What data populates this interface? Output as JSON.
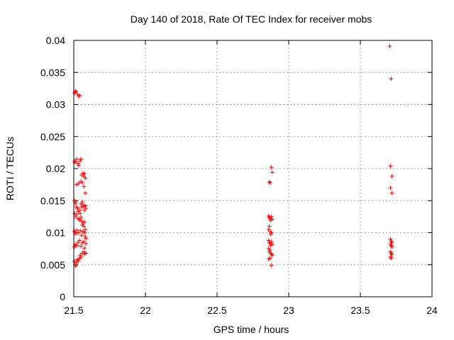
{
  "chart_data": {
    "type": "scatter",
    "title": "Day 140 of 2018, Rate Of TEC Index for receiver mobs",
    "xlabel": "GPS time / hours",
    "ylabel": "ROTI / TECUs",
    "xlim": [
      21.5,
      24
    ],
    "ylim": [
      0,
      0.04
    ],
    "xticks": [
      21.5,
      22,
      22.5,
      23,
      23.5,
      24
    ],
    "xtick_labels": [
      "21.5",
      "22",
      "22.5",
      "23",
      "23.5",
      "24"
    ],
    "yticks": [
      0,
      0.005,
      0.01,
      0.015,
      0.02,
      0.025,
      0.03,
      0.035,
      0.04
    ],
    "ytick_labels": [
      "0",
      "0.005",
      "0.01",
      "0.015",
      "0.02",
      "0.025",
      "0.03",
      "0.035",
      "0.04"
    ],
    "grid": true,
    "marker": "+",
    "color": "#ff0000",
    "series": [
      {
        "name": "mobs",
        "points": [
          [
            21.505,
            0.0318
          ],
          [
            21.51,
            0.0321
          ],
          [
            21.515,
            0.032
          ],
          [
            21.525,
            0.0316
          ],
          [
            21.535,
            0.0313
          ],
          [
            21.54,
            0.0314
          ],
          [
            21.505,
            0.0211
          ],
          [
            21.51,
            0.021
          ],
          [
            21.52,
            0.0215
          ],
          [
            21.53,
            0.0208
          ],
          [
            21.535,
            0.0205
          ],
          [
            21.545,
            0.0212
          ],
          [
            21.55,
            0.0215
          ],
          [
            21.555,
            0.019
          ],
          [
            21.565,
            0.0193
          ],
          [
            21.57,
            0.0188
          ],
          [
            21.58,
            0.0185
          ],
          [
            21.575,
            0.0192
          ],
          [
            21.52,
            0.0175
          ],
          [
            21.535,
            0.0177
          ],
          [
            21.55,
            0.018
          ],
          [
            21.56,
            0.0178
          ],
          [
            21.57,
            0.0172
          ],
          [
            21.58,
            0.0162
          ],
          [
            21.505,
            0.015
          ],
          [
            21.51,
            0.0145
          ],
          [
            21.515,
            0.0148
          ],
          [
            21.52,
            0.014
          ],
          [
            21.525,
            0.0138
          ],
          [
            21.53,
            0.0133
          ],
          [
            21.54,
            0.0135
          ],
          [
            21.545,
            0.013
          ],
          [
            21.55,
            0.0145
          ],
          [
            21.555,
            0.014
          ],
          [
            21.56,
            0.0148
          ],
          [
            21.565,
            0.0143
          ],
          [
            21.57,
            0.0141
          ],
          [
            21.575,
            0.0135
          ],
          [
            21.58,
            0.0142
          ],
          [
            21.585,
            0.0138
          ],
          [
            21.505,
            0.013
          ],
          [
            21.51,
            0.0125
          ],
          [
            21.52,
            0.0128
          ],
          [
            21.53,
            0.0122
          ],
          [
            21.54,
            0.012
          ],
          [
            21.55,
            0.0124
          ],
          [
            21.555,
            0.0118
          ],
          [
            21.56,
            0.0112
          ],
          [
            21.565,
            0.0115
          ],
          [
            21.57,
            0.011
          ],
          [
            21.575,
            0.0117
          ],
          [
            21.58,
            0.0105
          ],
          [
            21.505,
            0.0102
          ],
          [
            21.51,
            0.0098
          ],
          [
            21.52,
            0.0104
          ],
          [
            21.53,
            0.01
          ],
          [
            21.545,
            0.0103
          ],
          [
            21.555,
            0.0096
          ],
          [
            21.565,
            0.0102
          ],
          [
            21.575,
            0.01
          ],
          [
            21.58,
            0.0094
          ],
          [
            21.585,
            0.0091
          ],
          [
            21.505,
            0.0078
          ],
          [
            21.51,
            0.0082
          ],
          [
            21.52,
            0.008
          ],
          [
            21.53,
            0.0085
          ],
          [
            21.54,
            0.0088
          ],
          [
            21.55,
            0.0079
          ],
          [
            21.56,
            0.0084
          ],
          [
            21.57,
            0.0086
          ],
          [
            21.575,
            0.0076
          ],
          [
            21.585,
            0.0083
          ],
          [
            21.505,
            0.0055
          ],
          [
            21.51,
            0.005
          ],
          [
            21.515,
            0.0048
          ],
          [
            21.52,
            0.0053
          ],
          [
            21.525,
            0.0058
          ],
          [
            21.53,
            0.0056
          ],
          [
            21.54,
            0.006
          ],
          [
            21.545,
            0.0065
          ],
          [
            21.55,
            0.0062
          ],
          [
            21.56,
            0.0068
          ],
          [
            21.57,
            0.007
          ],
          [
            21.575,
            0.0067
          ],
          [
            21.585,
            0.0068
          ],
          [
            22.865,
            0.0179
          ],
          [
            22.87,
            0.0178
          ],
          [
            22.88,
            0.0202
          ],
          [
            22.885,
            0.0194
          ],
          [
            22.86,
            0.0126
          ],
          [
            22.865,
            0.0124
          ],
          [
            22.87,
            0.0122
          ],
          [
            22.875,
            0.0119
          ],
          [
            22.88,
            0.0125
          ],
          [
            22.885,
            0.0121
          ],
          [
            22.86,
            0.0105
          ],
          [
            22.865,
            0.011
          ],
          [
            22.87,
            0.0102
          ],
          [
            22.875,
            0.0097
          ],
          [
            22.88,
            0.01
          ],
          [
            22.86,
            0.0088
          ],
          [
            22.865,
            0.0085
          ],
          [
            22.87,
            0.0083
          ],
          [
            22.875,
            0.008
          ],
          [
            22.88,
            0.0086
          ],
          [
            22.885,
            0.0082
          ],
          [
            22.86,
            0.0075
          ],
          [
            22.865,
            0.007
          ],
          [
            22.87,
            0.0073
          ],
          [
            22.875,
            0.0068
          ],
          [
            22.88,
            0.0066
          ],
          [
            22.885,
            0.0065
          ],
          [
            22.86,
            0.0059
          ],
          [
            22.87,
            0.006
          ],
          [
            22.88,
            0.0049
          ],
          [
            23.705,
            0.0391
          ],
          [
            23.715,
            0.034
          ],
          [
            23.71,
            0.0204
          ],
          [
            23.72,
            0.0188
          ],
          [
            23.71,
            0.017
          ],
          [
            23.72,
            0.0162
          ],
          [
            23.71,
            0.009
          ],
          [
            23.715,
            0.0087
          ],
          [
            23.72,
            0.0085
          ],
          [
            23.71,
            0.0082
          ],
          [
            23.715,
            0.008
          ],
          [
            23.72,
            0.0078
          ],
          [
            23.71,
            0.007
          ],
          [
            23.715,
            0.0068
          ],
          [
            23.72,
            0.0066
          ],
          [
            23.71,
            0.0062
          ],
          [
            23.715,
            0.006
          ]
        ]
      }
    ]
  }
}
